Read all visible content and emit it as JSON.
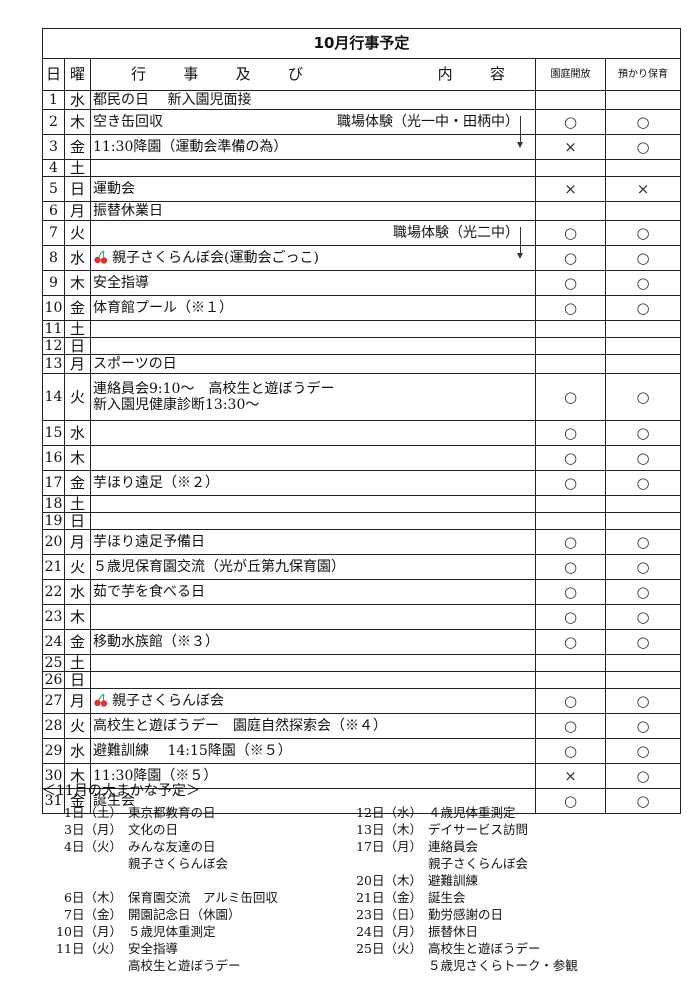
{
  "title": "10月行事予定",
  "headers": {
    "day": "日",
    "dow": "曜",
    "content": [
      "行",
      "事",
      "及",
      "び",
      "内",
      "容"
    ],
    "garden": "園庭開放",
    "childcare": "預かり保育"
  },
  "marks": {
    "circle": "○",
    "cross": "×"
  },
  "rows": [
    {
      "day": "1",
      "dow": "水",
      "lines": [
        "都民の日　 新入園児面接"
      ],
      "garden": "",
      "care": ""
    },
    {
      "day": "2",
      "dow": "木",
      "lines": [
        "空き缶回収"
      ],
      "right": "職場体験（光一中・田柄中）",
      "arrow": true,
      "garden": "○",
      "care": "○"
    },
    {
      "day": "3",
      "dow": "金",
      "lines": [
        "11:30降園（運動会準備の為）"
      ],
      "garden": "×",
      "care": "○"
    },
    {
      "day": "4",
      "dow": "土",
      "lines": [],
      "garden": "",
      "care": ""
    },
    {
      "day": "5",
      "dow": "日",
      "lines": [
        "運動会"
      ],
      "garden": "×",
      "care": "×"
    },
    {
      "day": "6",
      "dow": "月",
      "lines": [
        "振替休業日"
      ],
      "garden": "",
      "care": ""
    },
    {
      "day": "7",
      "dow": "火",
      "lines": [],
      "right": "職場体験（光二中）",
      "arrow": true,
      "garden": "○",
      "care": "○"
    },
    {
      "day": "8",
      "dow": "水",
      "lines": [
        "親子さくらんぼ会(運動会ごっこ)"
      ],
      "cherry": true,
      "garden": "○",
      "care": "○"
    },
    {
      "day": "9",
      "dow": "木",
      "lines": [
        "安全指導"
      ],
      "garden": "○",
      "care": "○"
    },
    {
      "day": "10",
      "dow": "金",
      "lines": [
        "体育館プール（※１）"
      ],
      "garden": "○",
      "care": "○"
    },
    {
      "day": "11",
      "dow": "土",
      "lines": [],
      "garden": "",
      "care": ""
    },
    {
      "day": "12",
      "dow": "日",
      "lines": [],
      "garden": "",
      "care": ""
    },
    {
      "day": "13",
      "dow": "月",
      "lines": [
        "スポーツの日"
      ],
      "garden": "",
      "care": ""
    },
    {
      "day": "14",
      "dow": "火",
      "lines": [
        "連絡員会9:10～　高校生と遊ぼうデー",
        "新入園児健康診断13:30～"
      ],
      "garden": "○",
      "care": "○"
    },
    {
      "day": "15",
      "dow": "水",
      "lines": [],
      "garden": "○",
      "care": "○"
    },
    {
      "day": "16",
      "dow": "木",
      "lines": [],
      "garden": "○",
      "care": "○"
    },
    {
      "day": "17",
      "dow": "金",
      "lines": [
        "芋ほり遠足（※２）"
      ],
      "garden": "○",
      "care": "○"
    },
    {
      "day": "18",
      "dow": "土",
      "lines": [],
      "garden": "",
      "care": ""
    },
    {
      "day": "19",
      "dow": "日",
      "lines": [],
      "garden": "",
      "care": ""
    },
    {
      "day": "20",
      "dow": "月",
      "lines": [
        "芋ほり遠足予備日"
      ],
      "garden": "○",
      "care": "○"
    },
    {
      "day": "21",
      "dow": "火",
      "lines": [
        "５歳児保育園交流（光が丘第九保育園）"
      ],
      "garden": "○",
      "care": "○"
    },
    {
      "day": "22",
      "dow": "水",
      "lines": [
        "茹で芋を食べる日"
      ],
      "garden": "○",
      "care": "○"
    },
    {
      "day": "23",
      "dow": "木",
      "lines": [],
      "garden": "○",
      "care": "○"
    },
    {
      "day": "24",
      "dow": "金",
      "lines": [
        "移動水族館（※３）"
      ],
      "garden": "○",
      "care": "○"
    },
    {
      "day": "25",
      "dow": "土",
      "lines": [],
      "garden": "",
      "care": ""
    },
    {
      "day": "26",
      "dow": "日",
      "lines": [],
      "garden": "",
      "care": ""
    },
    {
      "day": "27",
      "dow": "月",
      "lines": [
        "親子さくらんぼ会"
      ],
      "cherry": true,
      "garden": "○",
      "care": "○"
    },
    {
      "day": "28",
      "dow": "火",
      "lines": [
        "高校生と遊ぼうデー　園庭自然探索会（※４）"
      ],
      "garden": "○",
      "care": "○"
    },
    {
      "day": "29",
      "dow": "水",
      "lines": [
        "避難訓練　 14:15降園（※５）"
      ],
      "garden": "○",
      "care": "○"
    },
    {
      "day": "30",
      "dow": "木",
      "lines": [
        "11:30降園（※５）"
      ],
      "garden": "×",
      "care": "○"
    },
    {
      "day": "31",
      "dow": "金",
      "lines": [
        "誕生会"
      ],
      "garden": "○",
      "care": "○"
    }
  ],
  "november": {
    "title": "＜11月の大まかな予定＞",
    "left": [
      {
        "date": "1日（土）",
        "lines": [
          "東京都教育の日"
        ]
      },
      {
        "date": "3日（月）",
        "lines": [
          "文化の日"
        ]
      },
      {
        "date": "4日（火）",
        "lines": [
          "みんな友達の日",
          "親子さくらんぼ会"
        ]
      },
      {
        "date": "",
        "lines": [
          ""
        ]
      },
      {
        "date": "6日（木）",
        "lines": [
          "保育園交流　アルミ缶回収"
        ]
      },
      {
        "date": "7日（金）",
        "lines": [
          "開園記念日（休園）"
        ]
      },
      {
        "date": "10日（月）",
        "lines": [
          "５歳児体重測定"
        ]
      },
      {
        "date": "11日（火）",
        "lines": [
          "安全指導",
          "高校生と遊ぼうデー"
        ]
      }
    ],
    "right": [
      {
        "date": "12日（水）",
        "lines": [
          "４歳児体重測定"
        ]
      },
      {
        "date": "13日（木）",
        "lines": [
          "デイサービス訪問"
        ]
      },
      {
        "date": "17日（月）",
        "lines": [
          "連絡員会",
          "親子さくらんぼ会"
        ]
      },
      {
        "date": "20日（木）",
        "lines": [
          "避難訓練"
        ]
      },
      {
        "date": "21日（金）",
        "lines": [
          "誕生会"
        ]
      },
      {
        "date": "23日（日）",
        "lines": [
          "勤労感謝の日"
        ]
      },
      {
        "date": "24日（月）",
        "lines": [
          "振替休日"
        ]
      },
      {
        "date": "25日（火）",
        "lines": [
          "高校生と遊ぼうデー",
          "５歳児さくらトーク・参観"
        ]
      }
    ]
  }
}
